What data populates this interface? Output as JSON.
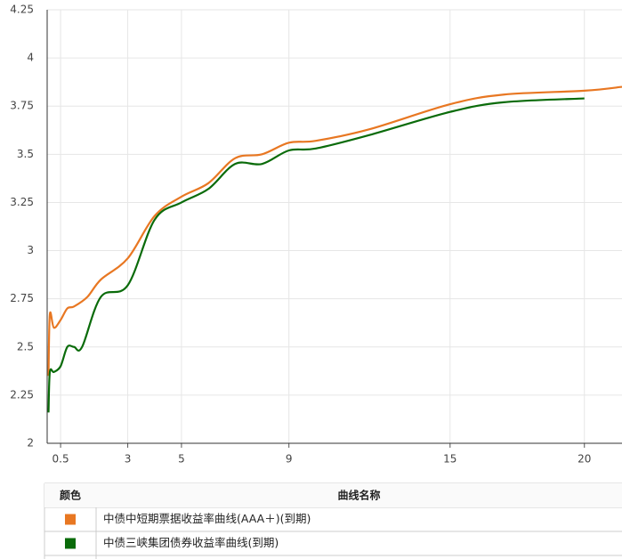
{
  "chart_data": {
    "type": "line",
    "xlim": [
      0,
      21.4
    ],
    "ylim": [
      2,
      4.25
    ],
    "xticks": [
      0.5,
      3,
      5,
      9,
      15,
      20
    ],
    "yticks": [
      2,
      2.25,
      2.5,
      2.75,
      3,
      3.25,
      3.5,
      3.75,
      4,
      4.25
    ],
    "grid": true,
    "legend_headers": [
      "颜色",
      "曲线名称"
    ],
    "series": [
      {
        "name": "中债中短期票据收益率曲线(AAA＋)(到期)",
        "color": "#e87722",
        "x": [
          0.05,
          0.1,
          0.25,
          0.5,
          0.75,
          1,
          1.5,
          2,
          3,
          4,
          5,
          6,
          7,
          8,
          9,
          10,
          12,
          15,
          17,
          20,
          21.4
        ],
        "values": [
          2.35,
          2.67,
          2.6,
          2.64,
          2.7,
          2.71,
          2.76,
          2.85,
          2.96,
          3.18,
          3.28,
          3.35,
          3.48,
          3.5,
          3.56,
          3.57,
          3.63,
          3.76,
          3.81,
          3.83,
          3.85
        ]
      },
      {
        "name": "中债三峡集团债券收益率曲线(到期)",
        "color": "#0a6b0a",
        "x": [
          0.05,
          0.1,
          0.25,
          0.5,
          0.75,
          1,
          1.3,
          2,
          3,
          4,
          5,
          6,
          7,
          8,
          9,
          10,
          12,
          15,
          17,
          20
        ],
        "values": [
          2.16,
          2.37,
          2.37,
          2.4,
          2.5,
          2.5,
          2.5,
          2.76,
          2.82,
          3.16,
          3.25,
          3.32,
          3.45,
          3.45,
          3.52,
          3.53,
          3.6,
          3.72,
          3.77,
          3.79
        ]
      }
    ]
  }
}
